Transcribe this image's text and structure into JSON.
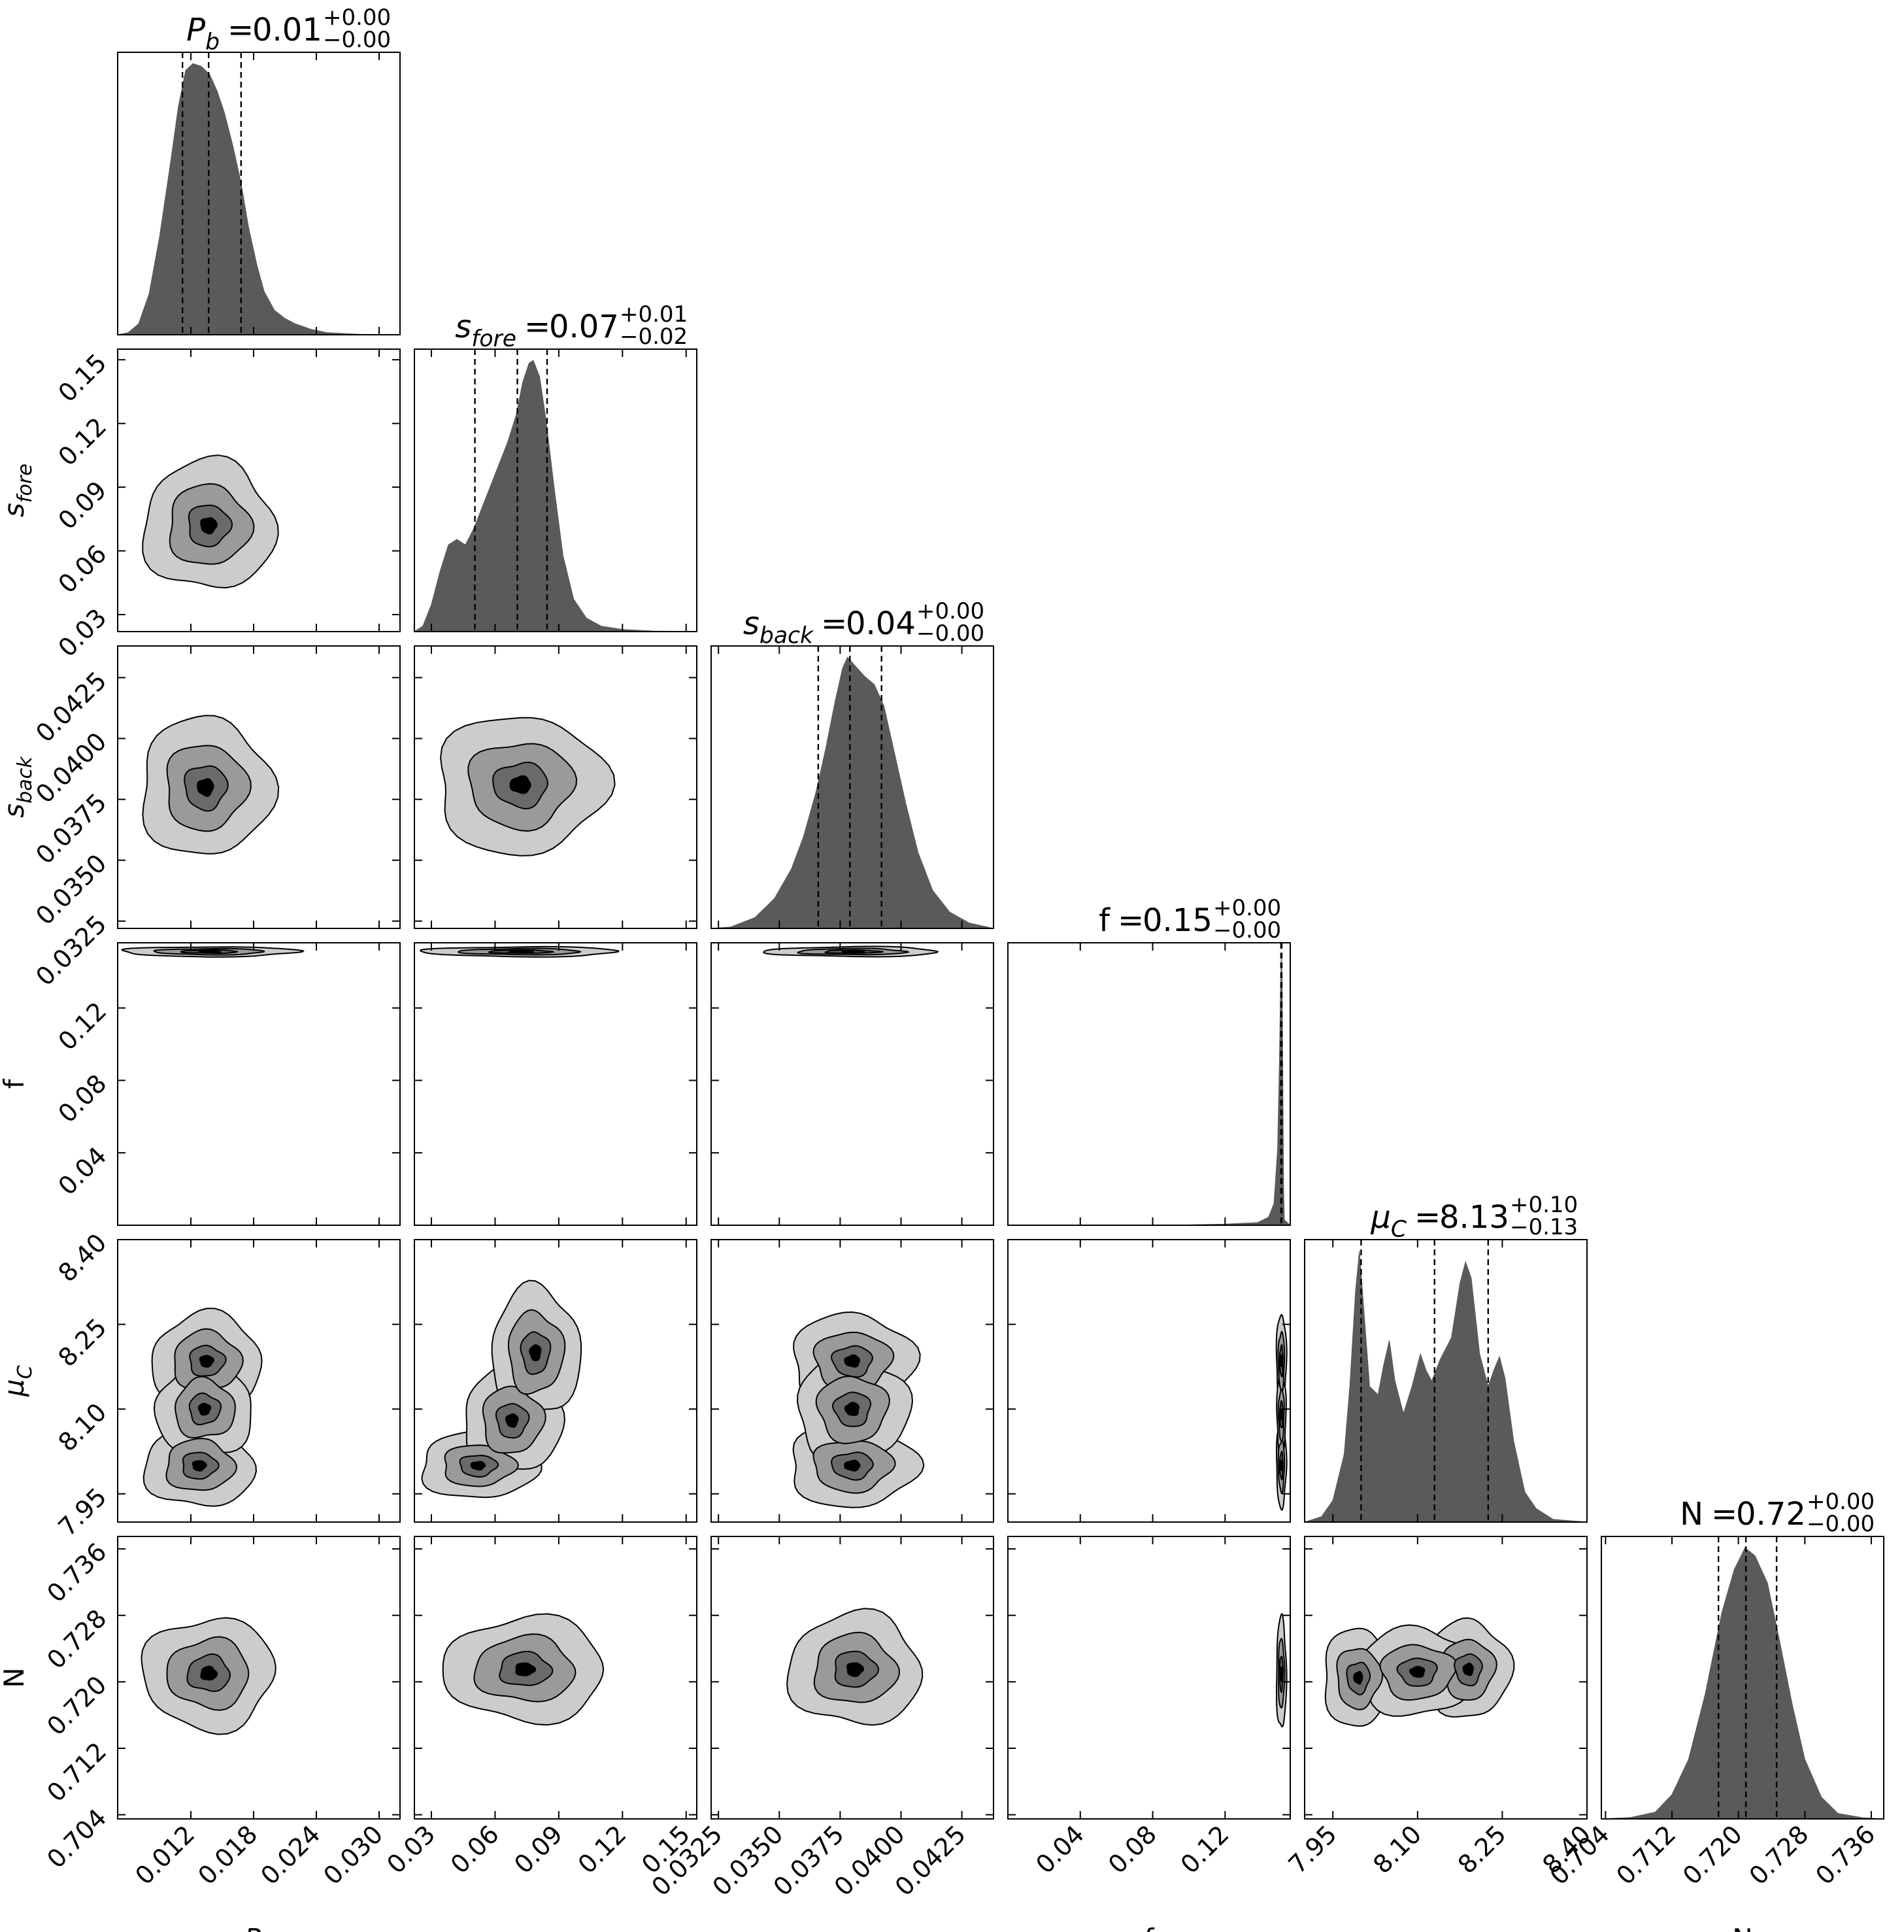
{
  "chart_data": {
    "type": "corner",
    "parameters": [
      {
        "key": "pb",
        "label": "P",
        "label_sub": "b",
        "label_italic": true,
        "range": [
          0.005,
          0.032
        ],
        "ticks": [
          0.012,
          0.018,
          0.024,
          0.03
        ],
        "tick_labels": [
          "0.012",
          "0.018",
          "0.024",
          "0.030"
        ],
        "title": {
          "value": "0.01",
          "plus": "+0.00",
          "minus": "−0.00"
        },
        "quantiles": [
          0.0112,
          0.0137,
          0.0168
        ],
        "hist": [
          [
            0.005,
            0.0
          ],
          [
            0.006,
            0.008
          ],
          [
            0.007,
            0.04
          ],
          [
            0.008,
            0.15
          ],
          [
            0.009,
            0.36
          ],
          [
            0.01,
            0.62
          ],
          [
            0.0108,
            0.84
          ],
          [
            0.0115,
            0.975
          ],
          [
            0.0122,
            1.0
          ],
          [
            0.013,
            0.99
          ],
          [
            0.0138,
            0.96
          ],
          [
            0.0145,
            0.9
          ],
          [
            0.0152,
            0.82
          ],
          [
            0.016,
            0.7
          ],
          [
            0.0168,
            0.56
          ],
          [
            0.0175,
            0.4
          ],
          [
            0.0183,
            0.26
          ],
          [
            0.019,
            0.16
          ],
          [
            0.02,
            0.09
          ],
          [
            0.021,
            0.06
          ],
          [
            0.022,
            0.04
          ],
          [
            0.0235,
            0.02
          ],
          [
            0.025,
            0.008
          ],
          [
            0.028,
            0.002
          ],
          [
            0.032,
            0.0
          ]
        ]
      },
      {
        "key": "sfore",
        "label": "s",
        "label_sub": "fore",
        "label_italic": true,
        "range": [
          0.022,
          0.155
        ],
        "ticks": [
          0.03,
          0.06,
          0.09,
          0.12,
          0.15
        ],
        "tick_labels": [
          "0.03",
          "0.06",
          "0.09",
          "0.12",
          "0.15"
        ],
        "title": {
          "value": "0.07",
          "plus": "+0.01",
          "minus": "−0.02"
        },
        "quantiles": [
          0.0505,
          0.0705,
          0.0845
        ],
        "hist": [
          [
            0.022,
            0.0
          ],
          [
            0.026,
            0.02
          ],
          [
            0.03,
            0.1
          ],
          [
            0.034,
            0.22
          ],
          [
            0.038,
            0.32
          ],
          [
            0.042,
            0.34
          ],
          [
            0.046,
            0.32
          ],
          [
            0.05,
            0.38
          ],
          [
            0.054,
            0.46
          ],
          [
            0.058,
            0.54
          ],
          [
            0.062,
            0.62
          ],
          [
            0.066,
            0.7
          ],
          [
            0.07,
            0.8
          ],
          [
            0.073,
            0.92
          ],
          [
            0.076,
            0.99
          ],
          [
            0.078,
            1.0
          ],
          [
            0.081,
            0.94
          ],
          [
            0.084,
            0.78
          ],
          [
            0.088,
            0.52
          ],
          [
            0.092,
            0.28
          ],
          [
            0.097,
            0.12
          ],
          [
            0.103,
            0.05
          ],
          [
            0.11,
            0.02
          ],
          [
            0.12,
            0.008
          ],
          [
            0.135,
            0.002
          ],
          [
            0.155,
            0.0
          ]
        ]
      },
      {
        "key": "sback",
        "label": "s",
        "label_sub": "back",
        "label_italic": true,
        "range": [
          0.0322,
          0.0438
        ],
        "ticks": [
          0.0325,
          0.035,
          0.0375,
          0.04,
          0.0425
        ],
        "tick_labels": [
          "0.0325",
          "0.0350",
          "0.0375",
          "0.0400",
          "0.0425"
        ],
        "title": {
          "value": "0.04",
          "plus": "+0.00",
          "minus": "−0.00"
        },
        "quantiles": [
          0.0366,
          0.0379,
          0.0392
        ],
        "hist": [
          [
            0.0322,
            0.0
          ],
          [
            0.033,
            0.005
          ],
          [
            0.034,
            0.04
          ],
          [
            0.0348,
            0.11
          ],
          [
            0.0355,
            0.22
          ],
          [
            0.036,
            0.34
          ],
          [
            0.0365,
            0.5
          ],
          [
            0.0369,
            0.66
          ],
          [
            0.0373,
            0.84
          ],
          [
            0.0376,
            0.96
          ],
          [
            0.0378,
            1.0
          ],
          [
            0.0381,
            0.97
          ],
          [
            0.0385,
            0.93
          ],
          [
            0.0389,
            0.9
          ],
          [
            0.0393,
            0.82
          ],
          [
            0.0397,
            0.66
          ],
          [
            0.0402,
            0.46
          ],
          [
            0.0407,
            0.28
          ],
          [
            0.0413,
            0.14
          ],
          [
            0.042,
            0.06
          ],
          [
            0.0428,
            0.02
          ],
          [
            0.0438,
            0.0
          ]
        ]
      },
      {
        "key": "f",
        "label": "f",
        "label_sub": "",
        "label_italic": false,
        "range": [
          0.0,
          0.156
        ],
        "ticks": [
          0.04,
          0.08,
          0.12
        ],
        "tick_labels": [
          "0.04",
          "0.08",
          "0.12"
        ],
        "title": {
          "value": "0.15",
          "plus": "+0.00",
          "minus": "−0.00"
        },
        "quantiles": [
          0.1509,
          0.1511,
          0.1513
        ],
        "hist": [
          [
            0.0,
            0.0
          ],
          [
            0.09,
            0.0
          ],
          [
            0.12,
            0.004
          ],
          [
            0.138,
            0.01
          ],
          [
            0.144,
            0.03
          ],
          [
            0.147,
            0.08
          ],
          [
            0.149,
            0.28
          ],
          [
            0.15,
            0.6
          ],
          [
            0.1506,
            0.85
          ],
          [
            0.1511,
            1.0
          ],
          [
            0.1515,
            0.9
          ],
          [
            0.1519,
            0.55
          ],
          [
            0.1523,
            0.15
          ],
          [
            0.1527,
            0.02
          ],
          [
            0.156,
            0.0
          ]
        ]
      },
      {
        "key": "muc",
        "label": "μ",
        "label_sub": "C",
        "label_italic": true,
        "range": [
          7.9,
          8.4
        ],
        "ticks": [
          7.95,
          8.1,
          8.25,
          8.4
        ],
        "tick_labels": [
          "7.95",
          "8.10",
          "8.25",
          "8.40"
        ],
        "title": {
          "value": "8.13",
          "plus": "+0.10",
          "minus": "−0.13"
        },
        "quantiles": [
          8.0,
          8.13,
          8.225
        ],
        "hist": [
          [
            7.9,
            0.0
          ],
          [
            7.93,
            0.02
          ],
          [
            7.95,
            0.08
          ],
          [
            7.97,
            0.25
          ],
          [
            7.98,
            0.5
          ],
          [
            7.99,
            0.85
          ],
          [
            7.997,
            1.0
          ],
          [
            8.005,
            0.78
          ],
          [
            8.015,
            0.5
          ],
          [
            8.03,
            0.47
          ],
          [
            8.04,
            0.58
          ],
          [
            8.05,
            0.67
          ],
          [
            8.06,
            0.52
          ],
          [
            8.075,
            0.4
          ],
          [
            8.09,
            0.5
          ],
          [
            8.105,
            0.62
          ],
          [
            8.115,
            0.56
          ],
          [
            8.125,
            0.52
          ],
          [
            8.14,
            0.6
          ],
          [
            8.16,
            0.68
          ],
          [
            8.175,
            0.88
          ],
          [
            8.185,
            0.96
          ],
          [
            8.195,
            0.9
          ],
          [
            8.21,
            0.62
          ],
          [
            8.225,
            0.5
          ],
          [
            8.235,
            0.56
          ],
          [
            8.245,
            0.61
          ],
          [
            8.255,
            0.53
          ],
          [
            8.27,
            0.3
          ],
          [
            8.29,
            0.11
          ],
          [
            8.31,
            0.05
          ],
          [
            8.34,
            0.01
          ],
          [
            8.4,
            0.0
          ]
        ]
      },
      {
        "key": "n",
        "label": "N",
        "label_sub": "",
        "label_italic": false,
        "range": [
          0.7035,
          0.7375
        ],
        "ticks": [
          0.704,
          0.712,
          0.72,
          0.728,
          0.736
        ],
        "tick_labels": [
          "0.704",
          "0.712",
          "0.720",
          "0.728",
          "0.736"
        ],
        "title": {
          "value": "0.72",
          "plus": "+0.00",
          "minus": "−0.00"
        },
        "quantiles": [
          0.7176,
          0.7209,
          0.7246
        ],
        "hist": [
          [
            0.7035,
            0.0
          ],
          [
            0.707,
            0.005
          ],
          [
            0.71,
            0.025
          ],
          [
            0.712,
            0.09
          ],
          [
            0.714,
            0.22
          ],
          [
            0.716,
            0.46
          ],
          [
            0.718,
            0.76
          ],
          [
            0.7195,
            0.92
          ],
          [
            0.7208,
            1.0
          ],
          [
            0.722,
            0.97
          ],
          [
            0.7235,
            0.87
          ],
          [
            0.725,
            0.65
          ],
          [
            0.7265,
            0.42
          ],
          [
            0.728,
            0.22
          ],
          [
            0.73,
            0.08
          ],
          [
            0.732,
            0.02
          ],
          [
            0.735,
            0.004
          ],
          [
            0.7375,
            0.0
          ]
        ]
      }
    ],
    "pairs": [
      {
        "x": "pb",
        "y": "sfore",
        "blobs": [
          {
            "cx": 0.0137,
            "cy": 0.072,
            "sx": 0.003,
            "sy": 0.0145,
            "rot": 0
          }
        ]
      },
      {
        "x": "pb",
        "y": "sback",
        "blobs": [
          {
            "cx": 0.0134,
            "cy": 0.038,
            "sx": 0.003,
            "sy": 0.00135,
            "rot": 0
          }
        ]
      },
      {
        "x": "sfore",
        "y": "sback",
        "blobs": [
          {
            "cx": 0.072,
            "cy": 0.0381,
            "sx": 0.019,
            "sy": 0.00135,
            "rot": 0
          }
        ]
      },
      {
        "x": "pb",
        "y": "f",
        "blobs": [
          {
            "cx": 0.0138,
            "cy": 0.1511,
            "sx": 0.004,
            "sy": 0.0013,
            "rot": 0
          }
        ]
      },
      {
        "x": "sfore",
        "y": "f",
        "blobs": [
          {
            "cx": 0.072,
            "cy": 0.1511,
            "sx": 0.022,
            "sy": 0.0013,
            "rot": 0
          }
        ]
      },
      {
        "x": "sback",
        "y": "f",
        "blobs": [
          {
            "cx": 0.038,
            "cy": 0.1511,
            "sx": 0.0017,
            "sy": 0.0013,
            "rot": 0
          }
        ]
      },
      {
        "x": "pb",
        "y": "muc",
        "blobs": [
          {
            "cx": 0.0128,
            "cy": 8.0,
            "sx": 0.0025,
            "sy": 0.035,
            "rot": 0
          },
          {
            "cx": 0.0135,
            "cy": 8.185,
            "sx": 0.0025,
            "sy": 0.04,
            "rot": 0
          },
          {
            "cx": 0.0133,
            "cy": 8.1,
            "sx": 0.0022,
            "sy": 0.04,
            "rot": 0
          }
        ]
      },
      {
        "x": "sfore",
        "y": "muc",
        "blobs": [
          {
            "cx": 0.052,
            "cy": 8.0,
            "sx": 0.013,
            "sy": 0.028,
            "rot": 0
          },
          {
            "cx": 0.068,
            "cy": 8.08,
            "sx": 0.011,
            "sy": 0.045,
            "rot": 0
          },
          {
            "cx": 0.079,
            "cy": 8.2,
            "sx": 0.01,
            "sy": 0.055,
            "rot": 0
          }
        ]
      },
      {
        "x": "sback",
        "y": "muc",
        "blobs": [
          {
            "cx": 0.038,
            "cy": 8.0,
            "sx": 0.00125,
            "sy": 0.035,
            "rot": 0
          },
          {
            "cx": 0.038,
            "cy": 8.185,
            "sx": 0.0012,
            "sy": 0.04,
            "rot": 0
          },
          {
            "cx": 0.038,
            "cy": 8.1,
            "sx": 0.0011,
            "sy": 0.045,
            "rot": 0
          }
        ]
      },
      {
        "x": "f",
        "y": "muc",
        "blobs": [
          {
            "cx": 0.1511,
            "cy": 8.0,
            "sx": 0.0013,
            "sy": 0.035,
            "rot": 0
          },
          {
            "cx": 0.1511,
            "cy": 8.185,
            "sx": 0.0013,
            "sy": 0.04,
            "rot": 0
          },
          {
            "cx": 0.1511,
            "cy": 8.09,
            "sx": 0.0012,
            "sy": 0.035,
            "rot": 0
          }
        ]
      },
      {
        "x": "pb",
        "y": "n",
        "blobs": [
          {
            "cx": 0.0137,
            "cy": 0.721,
            "sx": 0.003,
            "sy": 0.0032,
            "rot": 0
          }
        ]
      },
      {
        "x": "sfore",
        "y": "n",
        "blobs": [
          {
            "cx": 0.074,
            "cy": 0.7215,
            "sx": 0.018,
            "sy": 0.003,
            "rot": 0
          }
        ]
      },
      {
        "x": "sback",
        "y": "n",
        "blobs": [
          {
            "cx": 0.0381,
            "cy": 0.7215,
            "sx": 0.0013,
            "sy": 0.0032,
            "rot": 0
          }
        ]
      },
      {
        "x": "f",
        "y": "n",
        "blobs": [
          {
            "cx": 0.1511,
            "cy": 0.721,
            "sx": 0.0013,
            "sy": 0.0032,
            "rot": 0
          }
        ]
      },
      {
        "x": "muc",
        "y": "n",
        "blobs": [
          {
            "cx": 7.995,
            "cy": 0.7205,
            "sx": 0.03,
            "sy": 0.0028,
            "rot": 0
          },
          {
            "cx": 8.19,
            "cy": 0.7215,
            "sx": 0.035,
            "sy": 0.0028,
            "rot": 0
          },
          {
            "cx": 8.1,
            "cy": 0.7212,
            "sx": 0.05,
            "sy": 0.0025,
            "rot": 0
          }
        ]
      }
    ],
    "colors": {
      "hist_fill": "#5a5a5a",
      "level1": "#cccccc",
      "level2": "#9a9a9a",
      "level3": "#6a6a6a",
      "level4": "#000000",
      "frame": "#000000"
    }
  }
}
